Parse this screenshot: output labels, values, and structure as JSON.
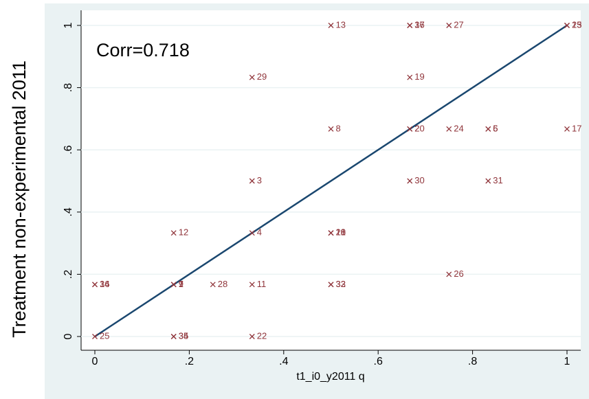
{
  "chart_data": {
    "type": "scatter",
    "annotation": "Corr=0.718",
    "x_label": "t1_i0_y2011 q",
    "y_label": "Treatment non-experimental 2011",
    "color": "#90353b",
    "line_color": "#1a476f",
    "x": [
      0.5,
      0.667,
      0.667,
      0.75,
      1,
      1,
      0.333,
      0.667,
      0.5,
      0.667,
      0.667,
      0.75,
      0.833,
      0.833,
      1,
      0.333,
      0.667,
      0.833,
      0.167,
      0.333,
      0.5,
      0.5,
      0.5,
      0,
      0,
      0.167,
      0.167,
      0.167,
      0.25,
      0.333,
      0.5,
      0.5,
      0.75,
      0,
      0.167,
      0.167,
      0.333
    ],
    "values": [
      1,
      1,
      1,
      1,
      1,
      1,
      0.833,
      0.833,
      0.667,
      0.667,
      0.667,
      0.667,
      0.667,
      0.667,
      0.667,
      0.5,
      0.5,
      0.5,
      0.333,
      0.333,
      0.333,
      0.333,
      0.333,
      0.167,
      0.167,
      0.167,
      0.167,
      0.167,
      0.167,
      0.167,
      0.167,
      0.167,
      0.2,
      0,
      0,
      0,
      0
    ],
    "point_labels": [
      "13",
      "16",
      "37",
      "27",
      "15",
      "23",
      "29",
      "19",
      "8",
      "2",
      "20",
      "24",
      "5",
      "6",
      "17",
      "3",
      "30",
      "31",
      "12",
      "4",
      "10",
      "18",
      "21",
      "14",
      "36",
      "1",
      "7",
      "9",
      "28",
      "11",
      "32",
      "33",
      "26",
      "25",
      "34",
      "35",
      "22"
    ],
    "xlim": [
      0,
      1
    ],
    "ylim": [
      0,
      1
    ],
    "xticks": [
      0,
      {
        "value": 0.2,
        "label": ".2"
      },
      {
        "value": 0.4,
        "label": ".4"
      },
      {
        "value": 0.6,
        "label": ".6"
      },
      {
        "value": 0.8,
        "label": ".8"
      },
      1
    ],
    "yticks": [
      0,
      {
        "value": 0.2,
        "label": ".2"
      },
      {
        "value": 0.4,
        "label": ".4"
      },
      {
        "value": 0.6,
        "label": ".6"
      },
      {
        "value": 0.8,
        "label": ".8"
      },
      1
    ],
    "grid": true
  }
}
